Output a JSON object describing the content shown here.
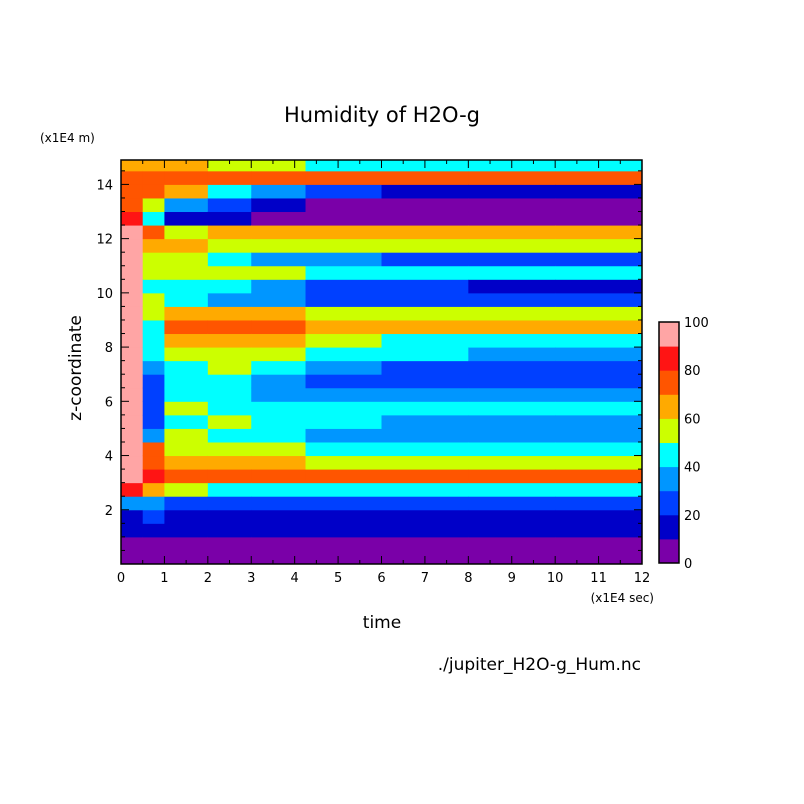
{
  "chart_data": {
    "type": "heatmap",
    "title": "Humidity of H2O-g",
    "xlabel": "time",
    "ylabel": "z-coordinate",
    "x_unit": "(x1E4 sec)",
    "y_unit": "(x1E4 m)",
    "footer": "./jupiter_H2O-g_Hum.nc",
    "xlim": [
      0,
      12
    ],
    "ylim": [
      0,
      14.9
    ],
    "xticks": [
      "0",
      "1",
      "2",
      "3",
      "4",
      "5",
      "6",
      "7",
      "8",
      "9",
      "10",
      "11",
      "12"
    ],
    "yticks": [
      "2",
      "4",
      "6",
      "8",
      "10",
      "12",
      "14"
    ],
    "colorbar": {
      "levels": [
        0,
        10,
        20,
        30,
        40,
        50,
        60,
        70,
        80,
        90,
        100
      ],
      "tick_labels": [
        "0",
        "20",
        "40",
        "60",
        "80",
        "100"
      ],
      "colors": [
        "#7a00a8",
        "#0000c8",
        "#0040ff",
        "#0096ff",
        "#00ffff",
        "#ccff00",
        "#ffaa00",
        "#ff5500",
        "#ff1414",
        "#ffa5a5"
      ]
    },
    "x_edges": [
      0,
      0.5,
      1,
      2,
      3,
      4.25,
      6,
      8,
      10,
      12
    ],
    "z_centers": [
      0.25,
      0.75,
      1.25,
      1.75,
      2.25,
      2.75,
      3.25,
      3.75,
      4.25,
      4.75,
      5.25,
      5.75,
      6.25,
      6.75,
      7.25,
      7.75,
      8.25,
      8.75,
      9.25,
      9.75,
      10.25,
      10.75,
      11.25,
      11.75,
      12.25,
      12.75,
      13.25,
      13.75,
      14.25,
      14.75
    ],
    "values_by_column": [
      [
        5,
        5,
        15,
        15,
        30,
        85,
        95,
        95,
        95,
        95,
        95,
        95,
        95,
        95,
        95,
        95,
        95,
        95,
        95,
        95,
        95,
        95,
        95,
        95,
        92,
        85,
        75,
        70,
        70,
        65
      ],
      [
        5,
        5,
        15,
        20,
        35,
        60,
        80,
        75,
        70,
        30,
        25,
        20,
        20,
        25,
        30,
        40,
        45,
        45,
        50,
        50,
        45,
        50,
        55,
        60,
        70,
        45,
        55,
        70,
        75,
        65
      ],
      [
        5,
        5,
        15,
        18,
        28,
        50,
        75,
        65,
        55,
        50,
        45,
        50,
        45,
        40,
        45,
        55,
        60,
        72,
        65,
        40,
        45,
        55,
        50,
        60,
        55,
        15,
        35,
        60,
        72,
        60
      ],
      [
        5,
        5,
        15,
        17,
        27,
        45,
        75,
        62,
        52,
        48,
        50,
        45,
        40,
        42,
        50,
        55,
        62,
        75,
        62,
        35,
        40,
        50,
        40,
        55,
        60,
        10,
        20,
        45,
        72,
        55
      ],
      [
        5,
        5,
        15,
        16,
        26,
        42,
        75,
        60,
        50,
        45,
        48,
        45,
        35,
        35,
        45,
        50,
        60,
        70,
        60,
        30,
        35,
        50,
        35,
        55,
        62,
        5,
        12,
        30,
        72,
        50
      ],
      [
        5,
        5,
        15,
        15,
        25,
        42,
        75,
        58,
        45,
        38,
        40,
        42,
        32,
        28,
        32,
        45,
        52,
        68,
        58,
        25,
        25,
        48,
        30,
        55,
        62,
        5,
        8,
        22,
        70,
        48
      ],
      [
        5,
        5,
        15,
        15,
        25,
        40,
        75,
        55,
        45,
        35,
        38,
        42,
        30,
        25,
        28,
        40,
        48,
        66,
        56,
        25,
        20,
        46,
        28,
        55,
        64,
        5,
        5,
        18,
        70,
        46
      ],
      [
        5,
        5,
        15,
        15,
        25,
        40,
        75,
        55,
        45,
        35,
        35,
        42,
        30,
        25,
        25,
        35,
        45,
        65,
        55,
        25,
        15,
        45,
        25,
        55,
        65,
        5,
        5,
        15,
        70,
        45
      ],
      [
        5,
        5,
        15,
        15,
        25,
        40,
        75,
        55,
        45,
        35,
        35,
        42,
        30,
        25,
        25,
        35,
        45,
        65,
        55,
        22,
        12,
        45,
        22,
        55,
        65,
        5,
        5,
        15,
        70,
        45
      ]
    ]
  }
}
